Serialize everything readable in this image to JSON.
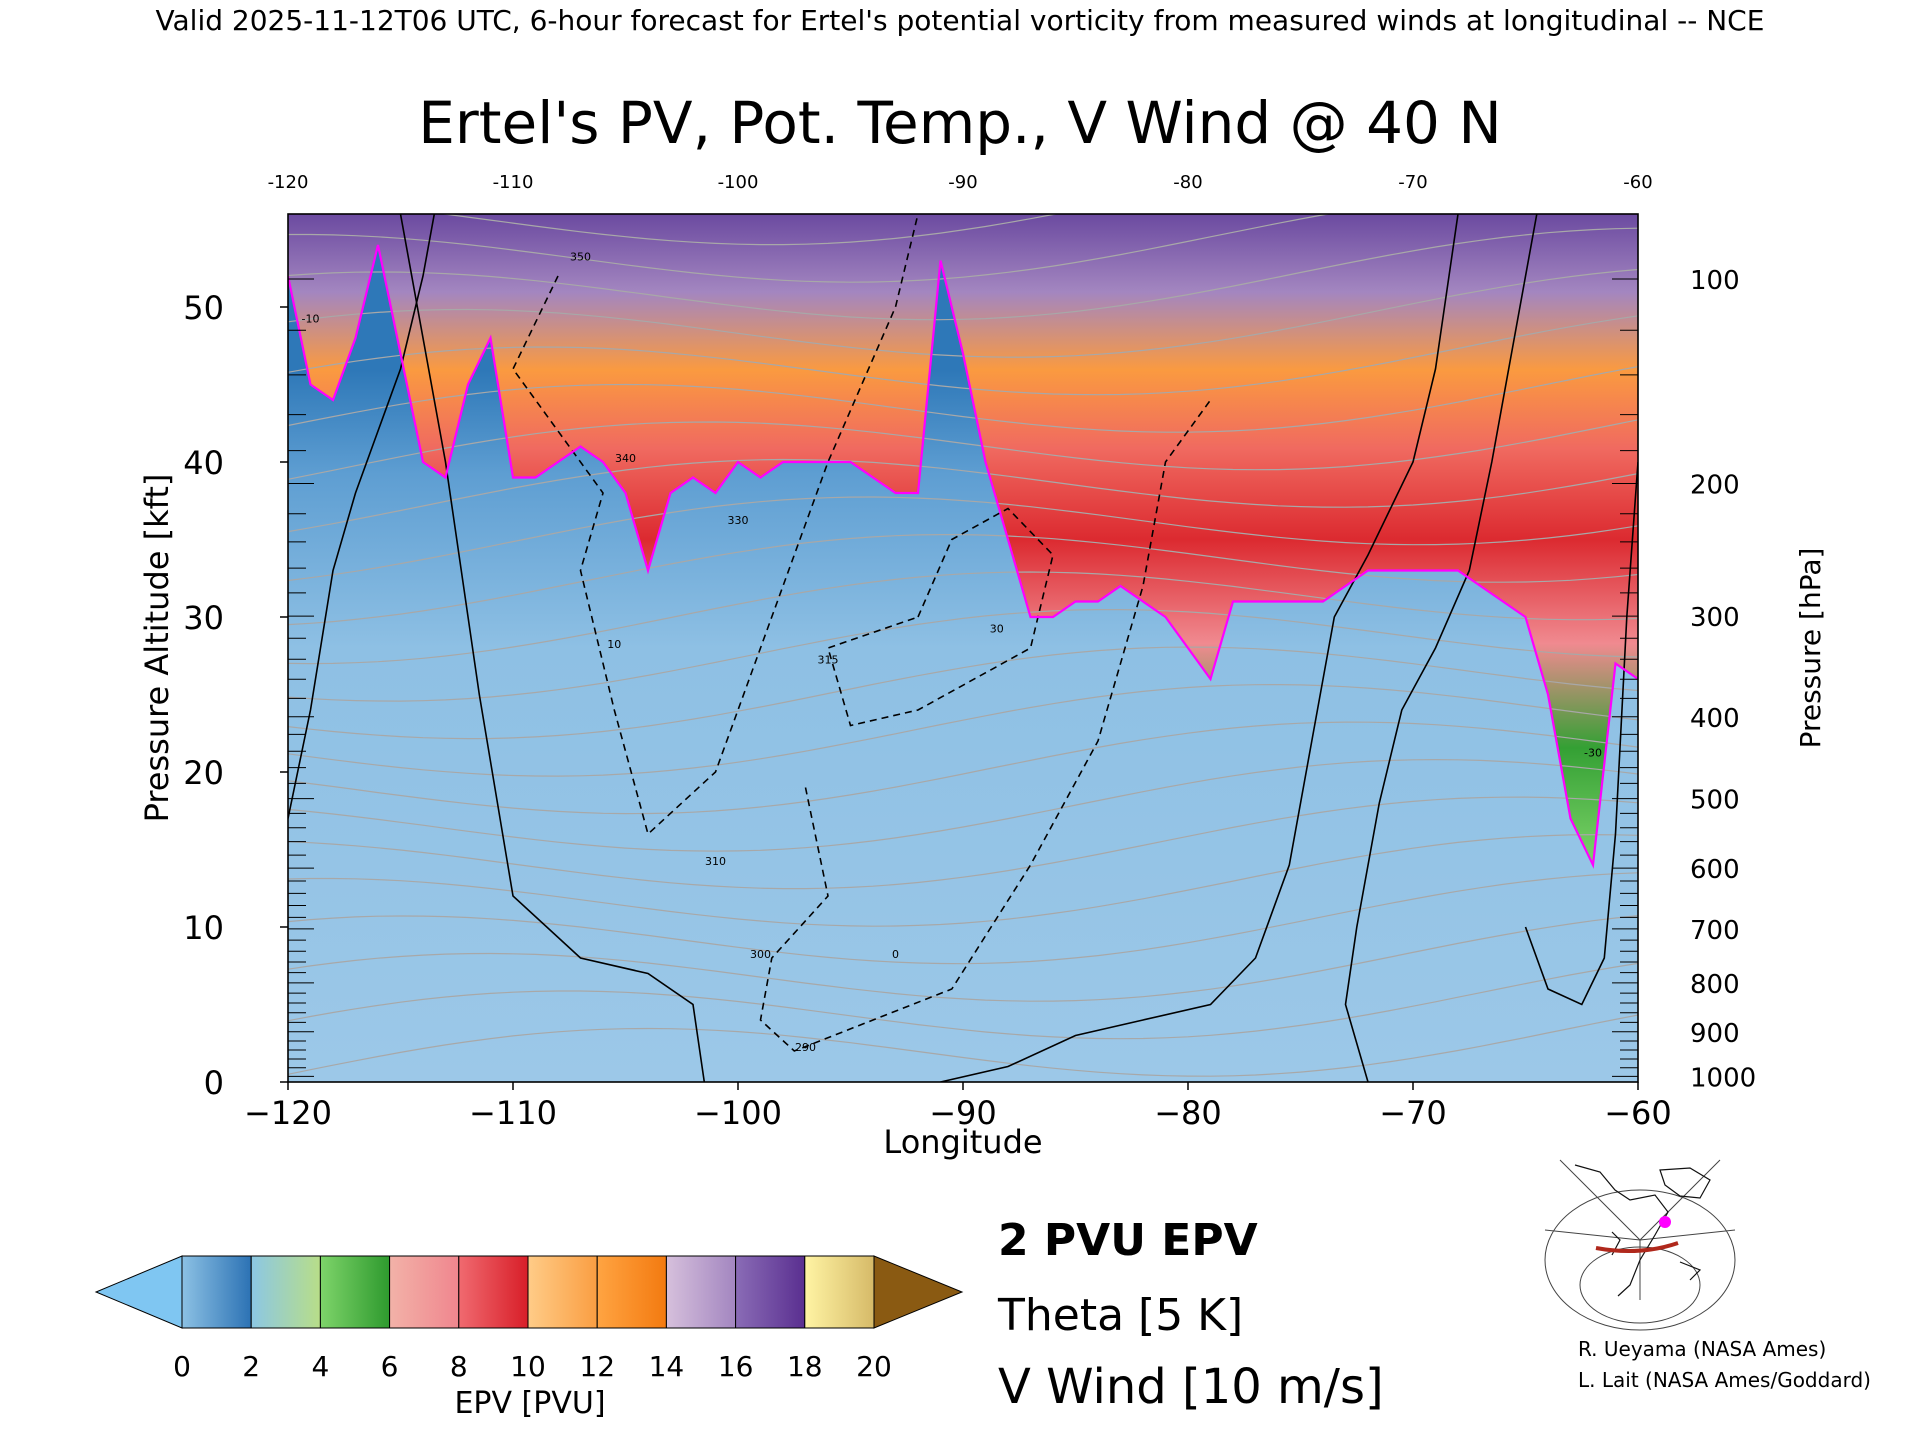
{
  "header": {
    "valid_line": "Valid 2025-11-12T06 UTC, 6-hour forecast for Ertel's potential vorticity from measured winds at longitudinal -- NCE"
  },
  "chart_data": {
    "type": "heatmap",
    "title": "Ertel's PV, Pot. Temp., V Wind @ 40 N",
    "xlabel": "Longitude",
    "ylabel": "Pressure Altitude [kft]",
    "y2label": "Pressure [hPa]",
    "xlim": [
      -120,
      -60
    ],
    "ylim": [
      0,
      56
    ],
    "x_ticks": [
      -120,
      -110,
      -100,
      -90,
      -80,
      -70,
      -60
    ],
    "x_tick_labels": [
      "−120",
      "−110",
      "−100",
      "−90",
      "−80",
      "−70",
      "−60"
    ],
    "top_tick_labels": [
      "-120",
      "-110",
      "-100",
      "-90",
      "-80",
      "-70",
      "-60"
    ],
    "y_ticks": [
      0,
      10,
      20,
      30,
      40,
      50
    ],
    "y_tick_labels": [
      "0",
      "10",
      "20",
      "30",
      "40",
      "50"
    ],
    "pressure_ticks": [
      {
        "hpa": 100,
        "label": "100"
      },
      {
        "hpa": 200,
        "label": "200"
      },
      {
        "hpa": 300,
        "label": "300"
      },
      {
        "hpa": 400,
        "label": "400"
      },
      {
        "hpa": 500,
        "label": "500"
      },
      {
        "hpa": 600,
        "label": "600"
      },
      {
        "hpa": 700,
        "label": "700"
      },
      {
        "hpa": 800,
        "label": "800"
      },
      {
        "hpa": 900,
        "label": "900"
      },
      {
        "hpa": 1000,
        "label": "1000"
      }
    ],
    "colorbar": {
      "label": "EPV [PVU]",
      "tick_values": [
        0,
        2,
        4,
        6,
        8,
        10,
        12,
        14,
        16,
        18,
        20
      ],
      "tick_labels": [
        "0",
        "2",
        "4",
        "6",
        "8",
        "10",
        "12",
        "14",
        "16",
        "18",
        "20"
      ],
      "under_color": "#7fc6f2",
      "over_color": "#8a5a12",
      "segments": [
        {
          "from": 0,
          "to": 2,
          "colors": [
            "#8cc1e4",
            "#2c72b4"
          ]
        },
        {
          "from": 2,
          "to": 4,
          "colors": [
            "#8cc7e4",
            "#b8de88"
          ]
        },
        {
          "from": 4,
          "to": 6,
          "colors": [
            "#7ed46a",
            "#2e9a2e"
          ]
        },
        {
          "from": 6,
          "to": 8,
          "colors": [
            "#f2b2a8",
            "#f0868e"
          ]
        },
        {
          "from": 8,
          "to": 10,
          "colors": [
            "#f06a70",
            "#d81e28"
          ]
        },
        {
          "from": 10,
          "to": 12,
          "colors": [
            "#ffcc88",
            "#fa9e42"
          ]
        },
        {
          "from": 12,
          "to": 14,
          "colors": [
            "#ffa442",
            "#f37a10"
          ]
        },
        {
          "from": 14,
          "to": 16,
          "colors": [
            "#d6c0dc",
            "#a386c0"
          ]
        },
        {
          "from": 16,
          "to": 18,
          "colors": [
            "#8a6cb6",
            "#5a2f90"
          ]
        },
        {
          "from": 18,
          "to": 20,
          "colors": [
            "#fff4a4",
            "#d6ba68"
          ]
        }
      ]
    },
    "pv_profile": {
      "name": "2 PVU EPV",
      "color": "#ff00ff",
      "lon": [
        -120,
        -119,
        -118,
        -117,
        -116,
        -115,
        -114,
        -113,
        -112,
        -111,
        -110,
        -109,
        -108,
        -107,
        -106,
        -105,
        -104,
        -103,
        -102,
        -101,
        -100,
        -99,
        -98,
        -97,
        -96,
        -95,
        -94,
        -93,
        -92,
        -91,
        -90,
        -89,
        -88,
        -87,
        -86,
        -85,
        -84,
        -83,
        -82,
        -81,
        -80,
        -79,
        -78,
        -77,
        -76,
        -75,
        -74,
        -73,
        -72,
        -71,
        -70,
        -69,
        -68,
        -67,
        -66,
        -65,
        -64,
        -63,
        -62,
        -61,
        -60
      ],
      "kft": [
        52,
        45,
        44,
        48,
        54,
        47,
        40,
        39,
        45,
        48,
        39,
        39,
        40,
        41,
        40,
        38,
        33,
        38,
        39,
        38,
        40,
        39,
        40,
        40,
        40,
        40,
        39,
        38,
        38,
        53,
        47,
        40,
        35,
        30,
        30,
        31,
        31,
        32,
        31,
        30,
        28,
        26,
        31,
        31,
        31,
        31,
        31,
        32,
        33,
        33,
        33,
        33,
        33,
        32,
        31,
        30,
        25,
        17,
        14,
        27,
        26
      ]
    },
    "legend": [
      {
        "text": "2 PVU EPV",
        "color": "#ff00ff"
      },
      {
        "text": "Theta [5 K]",
        "color": "#a6a6a6"
      },
      {
        "text": "V Wind [10 m/s]",
        "color": "#000000"
      }
    ],
    "theta_contour_labels": [
      "350",
      "340",
      "330",
      "315",
      "310",
      "300",
      "290",
      "30",
      "10",
      "0",
      "-10",
      "-30"
    ]
  },
  "credits": {
    "line1": "R. Ueyama (NASA Ames)",
    "line2": "L. Lait (NASA Ames/Goddard)"
  }
}
